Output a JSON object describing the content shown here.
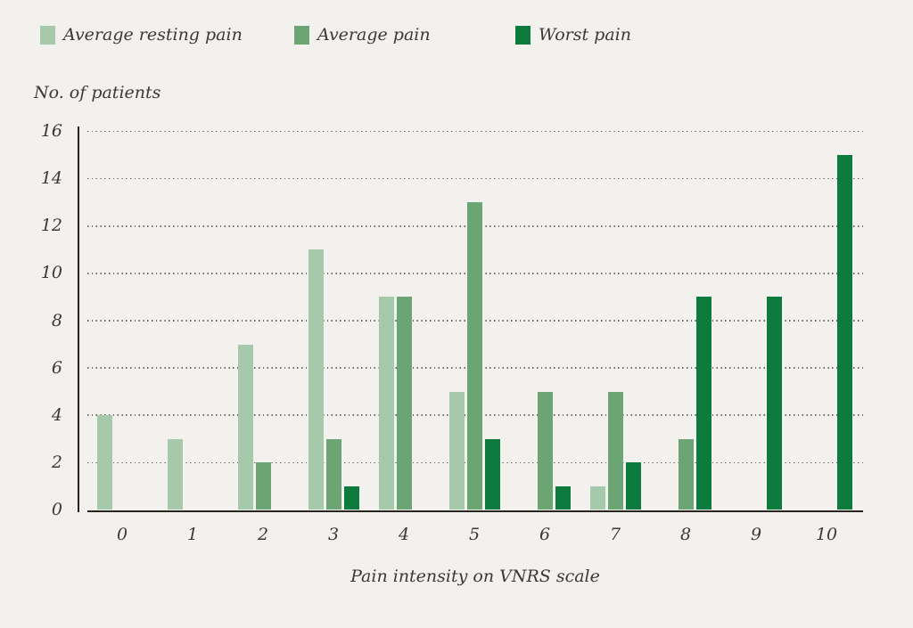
{
  "legend": {
    "items": [
      {
        "label": "Average resting pain",
        "color": "#a6c9ab"
      },
      {
        "label": "Average pain",
        "color": "#6ca574"
      },
      {
        "label": "Worst pain",
        "color": "#0e7b3e"
      }
    ]
  },
  "axes": {
    "y_title": "No. of patients",
    "x_title": "Pain intensity on VNRS scale"
  },
  "chart_data": {
    "type": "bar",
    "title": "",
    "xlabel": "Pain intensity on VNRS scale",
    "ylabel": "No. of patients",
    "categories": [
      "0",
      "1",
      "2",
      "3",
      "4",
      "5",
      "6",
      "7",
      "8",
      "9",
      "10"
    ],
    "series": [
      {
        "name": "Average resting pain",
        "color": "#a6c9ab",
        "values": [
          4,
          3,
          7,
          11,
          9,
          5,
          0,
          1,
          0,
          0,
          0
        ]
      },
      {
        "name": "Average pain",
        "color": "#6ca574",
        "values": [
          0,
          0,
          2,
          3,
          9,
          13,
          5,
          5,
          3,
          0,
          0
        ]
      },
      {
        "name": "Worst pain",
        "color": "#0e7b3e",
        "values": [
          0,
          0,
          0,
          1,
          0,
          3,
          1,
          2,
          9,
          9,
          15
        ]
      }
    ],
    "ylim": [
      0,
      16
    ],
    "yticks": [
      0,
      2,
      4,
      6,
      8,
      10,
      12,
      14,
      16
    ],
    "grid": "dotted-horizontal",
    "legend_position": "top"
  },
  "colors": {
    "background": "#f2f1ee",
    "axis_line": "#25241f",
    "grid_dots": "#6b6a64",
    "text": "#3a3935"
  }
}
